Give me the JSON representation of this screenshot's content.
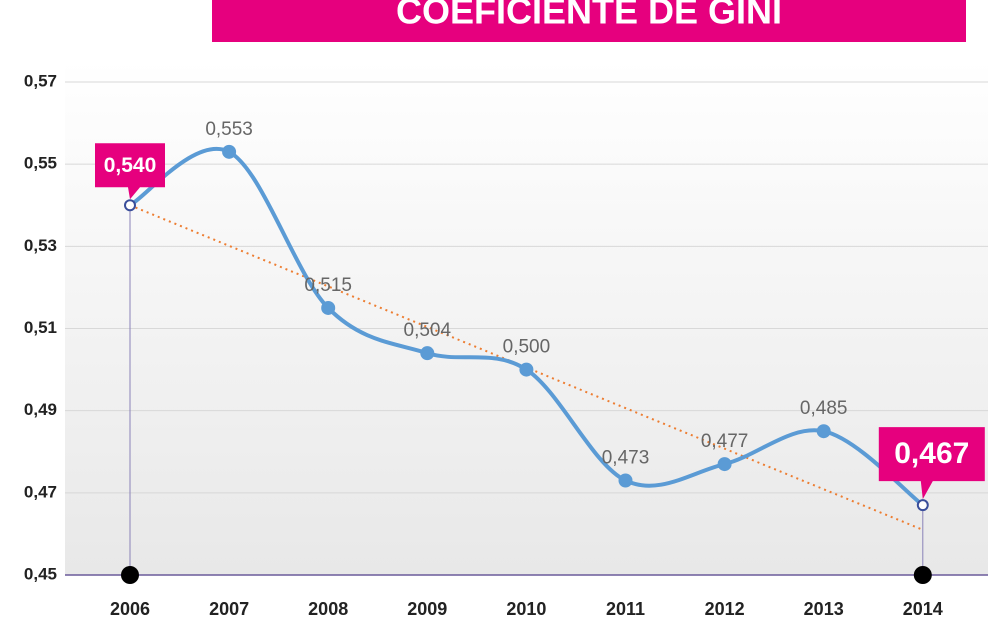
{
  "chart_data": {
    "type": "line",
    "title": "COEFICIENTE DE GINI",
    "categories": [
      "2006",
      "2007",
      "2008",
      "2009",
      "2010",
      "2011",
      "2012",
      "2013",
      "2014"
    ],
    "values": [
      0.54,
      0.553,
      0.515,
      0.504,
      0.5,
      0.473,
      0.477,
      0.485,
      0.467
    ],
    "value_labels": [
      "0,540",
      "0,553",
      "0,515",
      "0,504",
      "0,500",
      "0,473",
      "0,477",
      "0,485",
      "0,467"
    ],
    "color": "#5b9bd5",
    "highlighted": [
      0,
      8
    ],
    "highlight_color": "#e6007e",
    "trend_line": {
      "color": "#ed7d31",
      "values": [
        0.54,
        0.461
      ]
    },
    "ylim": [
      0.45,
      0.57
    ],
    "yticks": [
      {
        "value": 0.45,
        "label": "0,45"
      },
      {
        "value": 0.47,
        "label": "0,47"
      },
      {
        "value": 0.49,
        "label": "0,49"
      },
      {
        "value": 0.51,
        "label": "0,51"
      },
      {
        "value": 0.53,
        "label": "0,53"
      },
      {
        "value": 0.55,
        "label": "0,55"
      },
      {
        "value": 0.57,
        "label": "0,57"
      }
    ],
    "grid": true
  }
}
